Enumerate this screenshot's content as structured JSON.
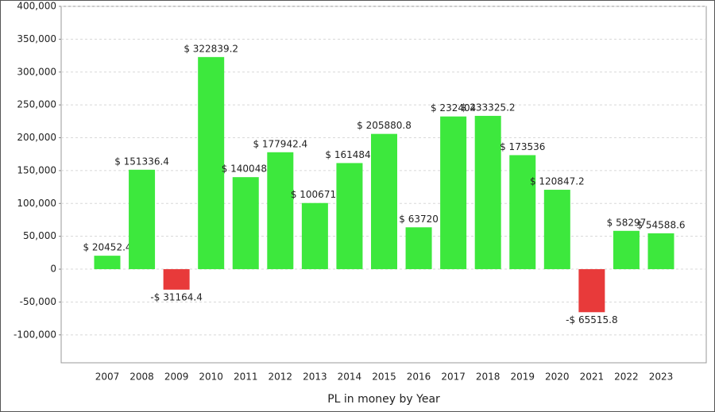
{
  "chart_data": {
    "type": "bar",
    "x_label": "PL in money by Year",
    "categories": [
      "2007",
      "2008",
      "2009",
      "2010",
      "2011",
      "2012",
      "2013",
      "2014",
      "2015",
      "2016",
      "2017",
      "2018",
      "2019",
      "2020",
      "2021",
      "2022",
      "2023"
    ],
    "values": [
      20452.4,
      151336.4,
      -31164.4,
      322839.2,
      140048,
      177942.4,
      100671,
      161484,
      205880.8,
      63720,
      232404,
      233325.2,
      173536,
      120847.2,
      -65515.8,
      58297,
      54588.6
    ],
    "value_labels": [
      "$ 20452.4",
      "$ 151336.4",
      "-$ 31164.4",
      "$ 322839.2",
      "$ 140048.",
      "$ 177942.4",
      "$ 100671.",
      "$ 161484.",
      "$ 205880.8",
      "$ 63720",
      "$ 232404",
      "$ 233325.2",
      "$ 173536",
      "$ 120847.2",
      "-$ 65515.8",
      "$ 58297",
      "$ 54588.6"
    ],
    "color": "#3de83d",
    "negative_color": "#e83a3a",
    "ylim": [
      -142500,
      400000
    ],
    "yticks": [
      {
        "value": -100000,
        "label": "-100,000"
      },
      {
        "value": -50000,
        "label": "-50,000"
      },
      0,
      {
        "value": 50000,
        "label": "50,000"
      },
      {
        "value": 100000,
        "label": "100,000"
      },
      {
        "value": 150000,
        "label": "150,000"
      },
      {
        "value": 200000,
        "label": "200,000"
      },
      {
        "value": 250000,
        "label": "250,000"
      },
      {
        "value": 300000,
        "label": "300,000"
      },
      {
        "value": 350000,
        "label": "350,000"
      },
      {
        "value": 400000,
        "label": "400,000"
      }
    ],
    "grid": true
  }
}
